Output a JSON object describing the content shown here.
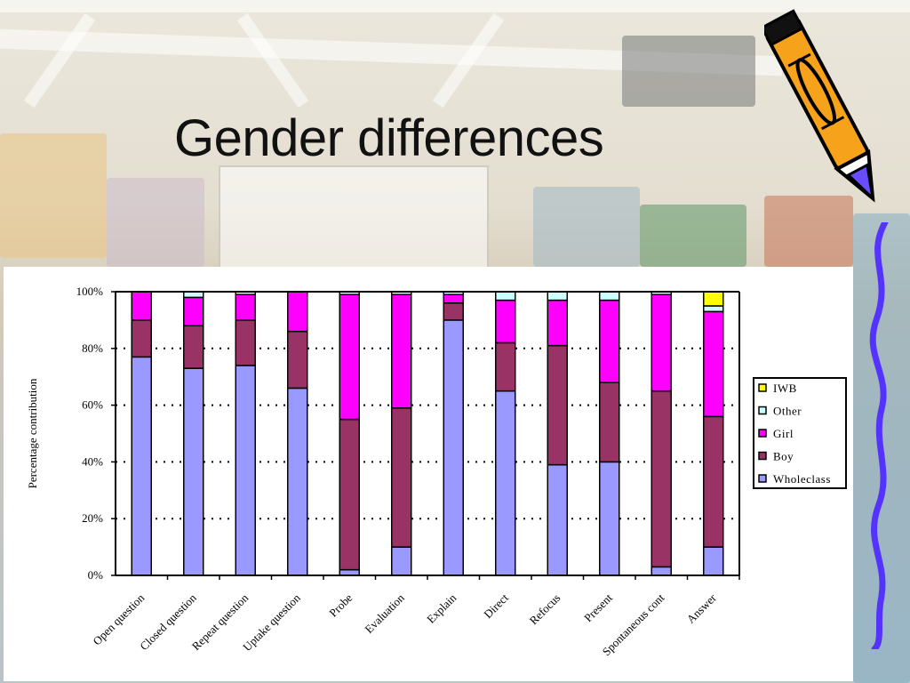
{
  "slide": {
    "title": "Gender differences"
  },
  "chart_data": {
    "type": "bar",
    "stacked": true,
    "percent_stacked": true,
    "ylabel": "Percentage contribution",
    "yticks": [
      "0%",
      "20%",
      "40%",
      "60%",
      "80%",
      "100%"
    ],
    "ylim": [
      0,
      100
    ],
    "grid": "horizontal dotted",
    "legend_position": "right",
    "categories": [
      "Open question",
      "Closed question",
      "Repeat question",
      "Uptake question",
      "Probe",
      "Evaluation",
      "Explain",
      "Direct",
      "Refocus",
      "Present",
      "Spontaneous cont",
      "Answer"
    ],
    "series": [
      {
        "name": "Wholeclass",
        "color": "#9999ff",
        "values": [
          77,
          73,
          74,
          66,
          2,
          10,
          90,
          65,
          39,
          40,
          3,
          10
        ]
      },
      {
        "name": "Boy",
        "color": "#993366",
        "values": [
          13,
          15,
          16,
          20,
          53,
          49,
          6,
          17,
          42,
          28,
          62,
          46
        ]
      },
      {
        "name": "Girl",
        "color": "#ff00ff",
        "values": [
          10,
          10,
          9,
          14,
          44,
          40,
          3,
          15,
          16,
          29,
          34,
          37
        ]
      },
      {
        "name": "Other",
        "color": "#ccffff",
        "values": [
          0,
          2,
          1,
          0,
          1,
          1,
          1,
          3,
          3,
          3,
          1,
          2
        ]
      },
      {
        "name": "IWB",
        "color": "#ffff00",
        "values": [
          0,
          0,
          0,
          0,
          0,
          0,
          0,
          0,
          0,
          0,
          0,
          5
        ]
      }
    ],
    "legend_order": [
      "IWB",
      "Other",
      "Girl",
      "Boy",
      "Wholeclass"
    ]
  }
}
